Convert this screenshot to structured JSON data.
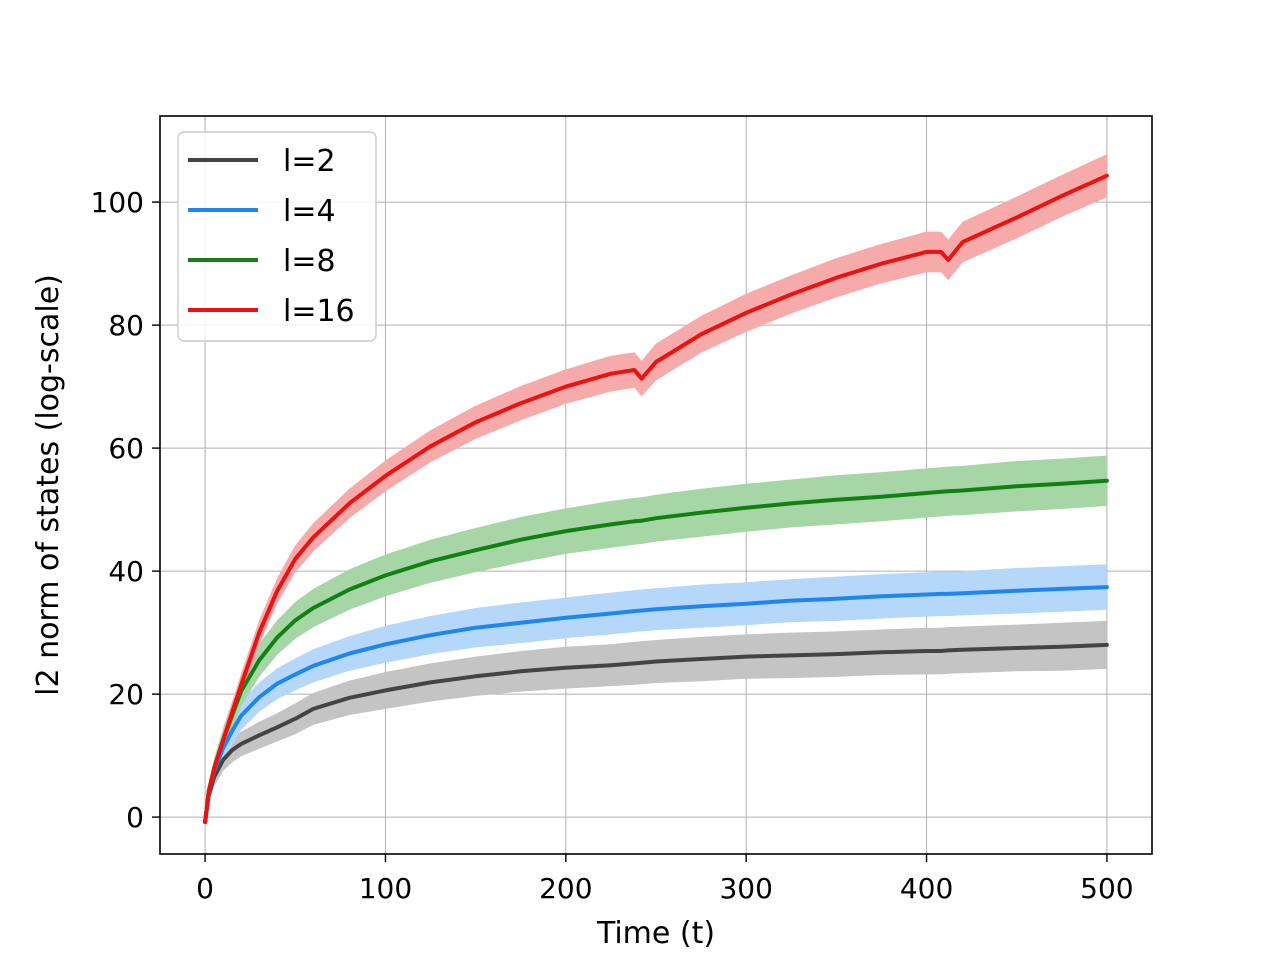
{
  "chart_data": {
    "type": "line",
    "title": "",
    "xlabel": "Time (t)",
    "ylabel": "l2 norm of states (log-scale)",
    "xlim": [
      -25,
      525
    ],
    "ylim": [
      -6,
      114
    ],
    "xticks": [
      0,
      100,
      200,
      300,
      400,
      500
    ],
    "yticks": [
      0,
      20,
      40,
      60,
      80,
      100
    ],
    "grid": true,
    "legend_position": "top-left",
    "bands": "shaded variability band around each line",
    "x": [
      0,
      2,
      5,
      10,
      15,
      20,
      30,
      40,
      50,
      60,
      80,
      100,
      125,
      150,
      175,
      200,
      225,
      238,
      242,
      250,
      275,
      300,
      325,
      350,
      375,
      400,
      408,
      412,
      420,
      450,
      475,
      500
    ],
    "series": [
      {
        "name": "l=2",
        "color": "#444444",
        "band_color": "#c4c4c4",
        "band_halfwidth": [
          0,
          1.0,
          1.5,
          1.8,
          2.0,
          2.0,
          2.2,
          2.3,
          2.5,
          2.6,
          2.8,
          3.0,
          3.1,
          3.2,
          3.3,
          3.4,
          3.4,
          3.5,
          3.5,
          3.5,
          3.6,
          3.6,
          3.7,
          3.7,
          3.7,
          3.8,
          3.8,
          3.8,
          3.8,
          3.8,
          3.9,
          3.9
        ],
        "values": [
          -0.8,
          3.5,
          6.5,
          9.3,
          10.9,
          11.9,
          13.3,
          14.6,
          16.0,
          17.6,
          19.4,
          20.6,
          21.9,
          22.9,
          23.7,
          24.3,
          24.7,
          25.0,
          25.1,
          25.3,
          25.7,
          26.1,
          26.3,
          26.5,
          26.8,
          27.0,
          27.0,
          27.1,
          27.2,
          27.5,
          27.7,
          28.0
        ]
      },
      {
        "name": "l=4",
        "color": "#1f85ef",
        "band_color": "#b4d7fa",
        "band_halfwidth": [
          0,
          1.0,
          1.5,
          2.0,
          2.2,
          2.3,
          2.4,
          2.5,
          2.6,
          2.7,
          2.8,
          3.0,
          3.1,
          3.2,
          3.3,
          3.3,
          3.4,
          3.4,
          3.4,
          3.4,
          3.5,
          3.5,
          3.5,
          3.6,
          3.6,
          3.6,
          3.6,
          3.6,
          3.6,
          3.7,
          3.7,
          3.7
        ],
        "values": [
          -0.8,
          4.0,
          7.5,
          11.2,
          14.0,
          16.5,
          19.5,
          21.7,
          23.2,
          24.6,
          26.6,
          28.1,
          29.6,
          30.8,
          31.6,
          32.4,
          33.1,
          33.5,
          33.6,
          33.8,
          34.3,
          34.7,
          35.2,
          35.5,
          35.9,
          36.2,
          36.3,
          36.3,
          36.4,
          36.8,
          37.1,
          37.4
        ]
      },
      {
        "name": "l=8",
        "color": "#138013",
        "band_color": "#a6d6a6",
        "band_halfwidth": [
          0,
          1.0,
          1.5,
          2.0,
          2.3,
          2.5,
          2.7,
          2.8,
          3.0,
          3.1,
          3.3,
          3.4,
          3.5,
          3.6,
          3.7,
          3.7,
          3.8,
          3.8,
          3.8,
          3.8,
          3.9,
          3.9,
          3.9,
          4.0,
          4.0,
          4.0,
          4.0,
          4.0,
          4.0,
          4.1,
          4.1,
          4.1
        ],
        "values": [
          -0.8,
          4.2,
          8.0,
          12.5,
          16.5,
          20.5,
          25.5,
          29.2,
          32.0,
          34.0,
          37.0,
          39.3,
          41.6,
          43.4,
          45.1,
          46.5,
          47.6,
          48.1,
          48.2,
          48.6,
          49.5,
          50.3,
          51.0,
          51.6,
          52.1,
          52.7,
          52.9,
          53.0,
          53.1,
          53.8,
          54.2,
          54.7
        ]
      },
      {
        "name": "l=16",
        "color": "#ee1111",
        "band_color": "#f6aaaa",
        "band_halfwidth": [
          0,
          0.8,
          1.2,
          1.5,
          1.7,
          1.9,
          2.0,
          2.1,
          2.2,
          2.3,
          2.4,
          2.5,
          2.6,
          2.7,
          2.8,
          2.8,
          2.9,
          2.9,
          2.9,
          3.0,
          3.0,
          3.1,
          3.1,
          3.2,
          3.2,
          3.3,
          3.3,
          3.3,
          3.3,
          3.4,
          3.4,
          3.5
        ],
        "values": [
          -0.8,
          4.0,
          7.8,
          12.5,
          17.0,
          21.5,
          30.0,
          36.8,
          42.0,
          45.5,
          51.0,
          55.5,
          60.3,
          64.2,
          67.3,
          70.0,
          72.1,
          72.7,
          71.3,
          74.0,
          78.5,
          82.0,
          85.0,
          87.7,
          90.0,
          91.9,
          91.9,
          90.6,
          93.5,
          97.5,
          101.0,
          104.3
        ]
      }
    ]
  }
}
